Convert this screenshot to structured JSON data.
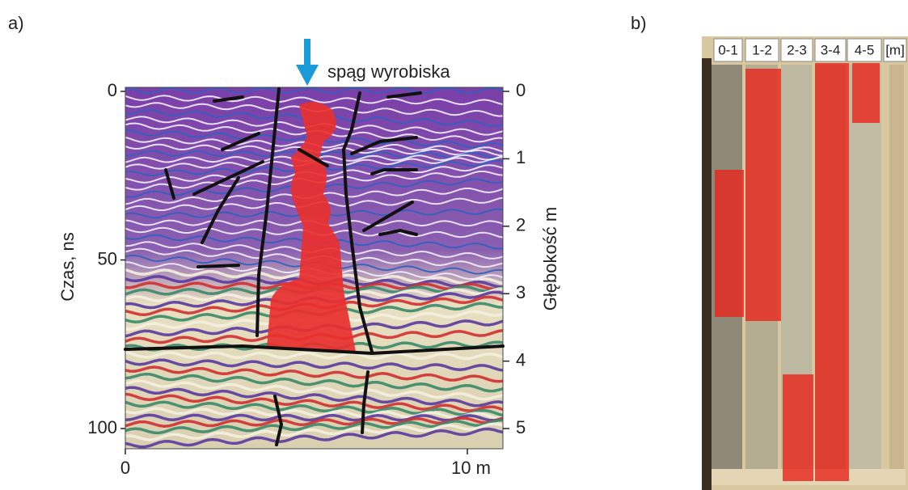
{
  "panel_a": {
    "label": "a)",
    "annotation": "spąg wyrobiska",
    "time_axis": {
      "label": "Czas, ns",
      "ticks": [
        0,
        50,
        100
      ]
    },
    "depth_axis": {
      "label": "Głębokość  m",
      "ticks": [
        0,
        1,
        2,
        3,
        4,
        5
      ]
    },
    "distance_axis": {
      "ticks": [
        0,
        {
          "value": 10,
          "label": "10 m"
        }
      ]
    }
  },
  "panel_b": {
    "label": "b)",
    "columns": [
      "0-1",
      "1-2",
      "2-3",
      "3-4",
      "4-5",
      "[m]"
    ]
  }
}
